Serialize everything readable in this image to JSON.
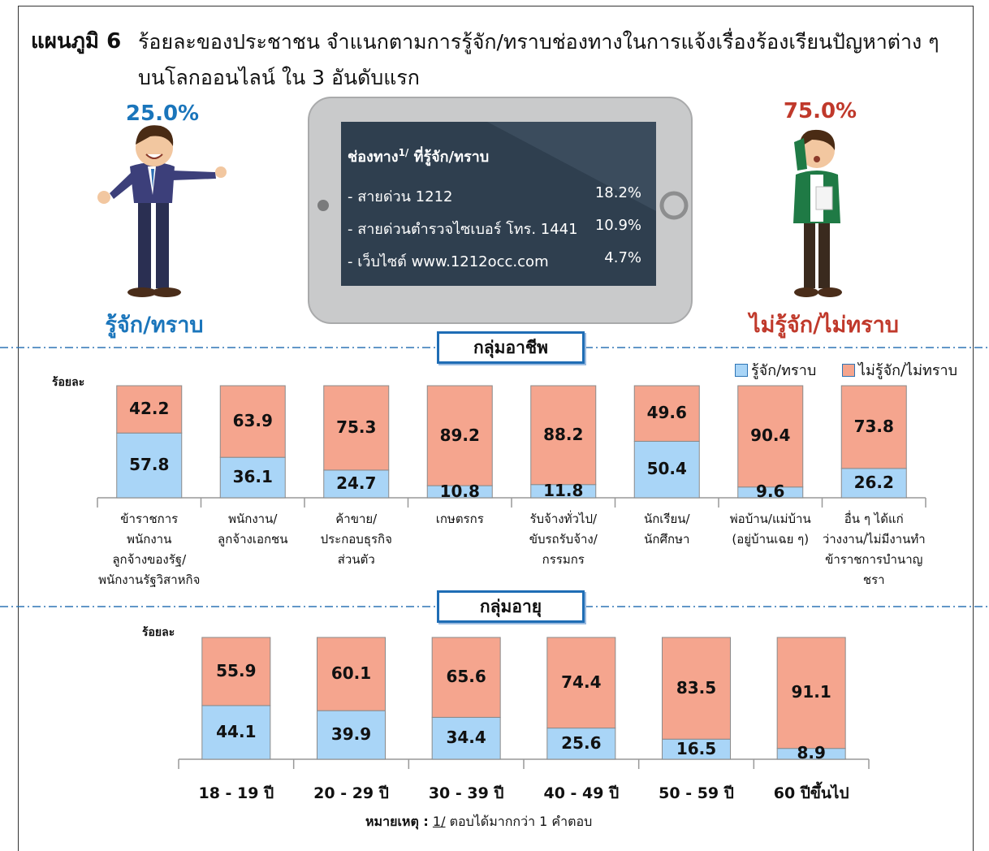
{
  "header": {
    "label": "แผนภูมิ 6",
    "title": "ร้อยละของประชาชน  จำแนกตามการรู้จัก/ทราบช่องทางในการแจ้งเรื่องร้องเรียนปัญหาต่าง ๆ บนโลกออนไลน์ ใน 3 อันดับแรก"
  },
  "summary": {
    "aware_percent": "25.0%",
    "aware_label": "รู้จัก/ทราบ",
    "unaware_percent": "75.0%",
    "unaware_label": "ไม่รู้จัก/ไม่ทราบ"
  },
  "tablet": {
    "heading": "ช่องทาง",
    "footnote_ref": "1/",
    "heading_rest": " ที่รู้จัก/ทราบ",
    "items": [
      {
        "name": "- สายด่วน 1212",
        "value": "18.2%"
      },
      {
        "name": "- สายด่วนตำรวจไซเบอร์ โทร. 1441",
        "value": "10.9%"
      },
      {
        "name": "- เว็บไซต์ www.1212occ.com",
        "value": "4.7%"
      }
    ]
  },
  "note": {
    "label": "หมายเหตุ :",
    "ref": "1/",
    "text": "ตอบได้มากกว่า 1 คำตอบ"
  },
  "chart_data": [
    {
      "type": "stacked_bar",
      "title": "กลุ่มอาชีพ",
      "y_label": "ร้อยละ",
      "ylim": [
        0,
        100
      ],
      "legend": "top-right",
      "categories": [
        "ข้าราชการ\nพนักงาน\nลูกจ้างของรัฐ/\nพนักงานรัฐวิสาหกิจ",
        "พนักงาน/\nลูกจ้างเอกชน",
        "ค้าขาย/\nประกอบธุรกิจ\nส่วนตัว",
        "เกษตรกร",
        "รับจ้างทั่วไป/\nขับรถรับจ้าง/\nกรรมกร",
        "นักเรียน/\nนักศึกษา",
        "พ่อบ้าน/แม่บ้าน\n(อยู่บ้านเฉย ๆ)",
        "อื่น ๆ ได้แก่\nว่างงาน/ไม่มีงานทำ\nข้าราชการบำนาญ ชรา"
      ],
      "series": [
        {
          "name": "รู้จัก/ทราบ",
          "color": "#a9d5f7",
          "values": [
            57.8,
            36.1,
            24.7,
            10.8,
            11.8,
            50.4,
            9.6,
            26.2
          ]
        },
        {
          "name": "ไม่รู้จัก/ไม่ทราบ",
          "color": "#f5a58e",
          "values": [
            42.2,
            63.9,
            75.3,
            89.2,
            88.2,
            49.6,
            90.4,
            73.8
          ]
        }
      ]
    },
    {
      "type": "stacked_bar",
      "title": "กลุ่มอายุ",
      "y_label": "ร้อยละ",
      "ylim": [
        0,
        100
      ],
      "categories": [
        "18 - 19 ปี",
        "20 - 29 ปี",
        "30 - 39 ปี",
        "40 - 49 ปี",
        "50 - 59 ปี",
        "60 ปีขึ้นไป"
      ],
      "series": [
        {
          "name": "รู้จัก/ทราบ",
          "color": "#a9d5f7",
          "values": [
            44.1,
            39.9,
            34.4,
            25.6,
            16.5,
            8.9
          ]
        },
        {
          "name": "ไม่รู้จัก/ไม่ทราบ",
          "color": "#f5a58e",
          "values": [
            55.9,
            60.1,
            65.6,
            74.4,
            83.5,
            91.1
          ]
        }
      ]
    }
  ]
}
